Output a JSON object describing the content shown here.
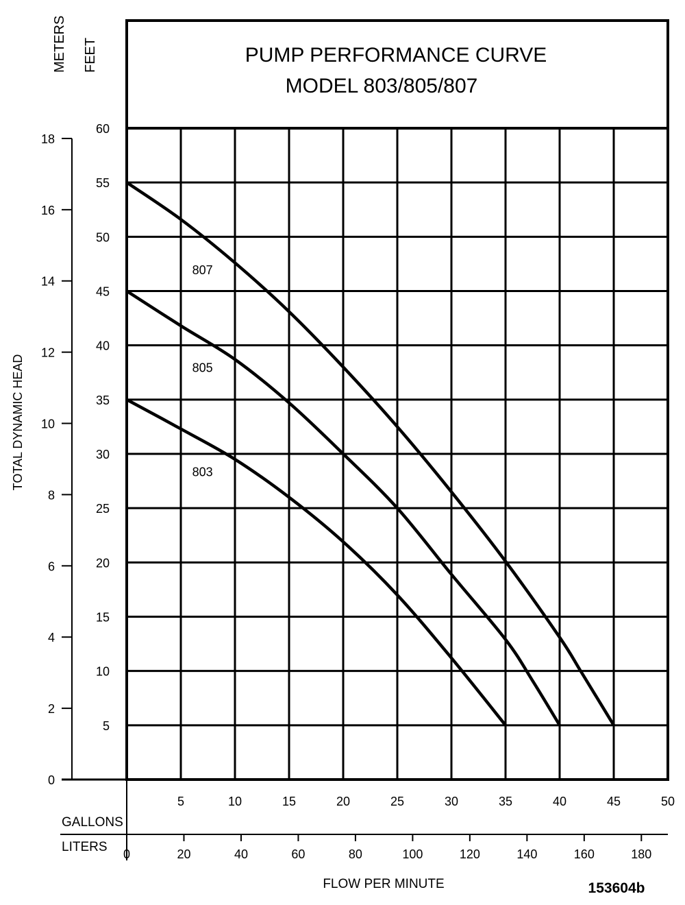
{
  "chart_data": {
    "type": "line",
    "title": "PUMP PERFORMANCE CURVE",
    "subtitle": "MODEL 803/805/807",
    "xlabel": "FLOW PER MINUTE",
    "ylabel": "TOTAL DYNAMIC HEAD",
    "x_unit_primary": "GALLONS",
    "x_unit_secondary": "LITERS",
    "y_unit_primary": "FEET",
    "y_unit_secondary": "METERS",
    "xlim": [
      0,
      50
    ],
    "ylim": [
      0,
      60
    ],
    "grid": true,
    "x_ticks": [
      5,
      10,
      15,
      20,
      25,
      30,
      35,
      40,
      45,
      50
    ],
    "liters_ticks": [
      0,
      20,
      40,
      60,
      80,
      100,
      120,
      140,
      160,
      180
    ],
    "y_ticks_feet": [
      5,
      10,
      15,
      20,
      25,
      30,
      35,
      40,
      45,
      50,
      55,
      60
    ],
    "y_ticks_meters": [
      0,
      2,
      4,
      6,
      8,
      10,
      12,
      14,
      16,
      18
    ],
    "series": [
      {
        "name": "807",
        "x": [
          0,
          5,
          10,
          15,
          20,
          25,
          30,
          35,
          40,
          42,
          45
        ],
        "y": [
          55,
          51.6,
          47.6,
          43.1,
          38.0,
          32.5,
          26.5,
          20.1,
          13.1,
          9.9,
          5
        ]
      },
      {
        "name": "805",
        "x": [
          0,
          5,
          10,
          15,
          20,
          25,
          30,
          35,
          37.5,
          40
        ],
        "y": [
          45,
          41.8,
          38.7,
          34.7,
          30.0,
          25.0,
          18.9,
          12.9,
          9.1,
          5
        ]
      },
      {
        "name": "803",
        "x": [
          0,
          5,
          10,
          15,
          20,
          25,
          30,
          35
        ],
        "y": [
          35,
          32.3,
          29.5,
          26.0,
          21.9,
          17.0,
          11.2,
          5
        ]
      }
    ],
    "series_label_positions": [
      {
        "name": "807",
        "x": 7,
        "y": 47
      },
      {
        "name": "805",
        "x": 7,
        "y": 38
      },
      {
        "name": "803",
        "x": 7,
        "y": 28.4
      }
    ]
  },
  "figure_id": "153604b"
}
